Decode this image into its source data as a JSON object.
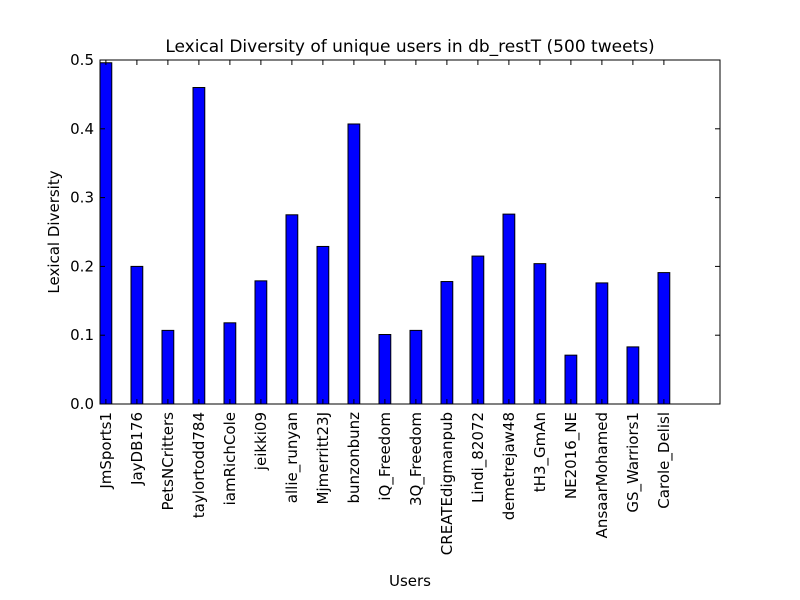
{
  "chart_data": {
    "type": "bar",
    "title": "Lexical Diversity of unique users in db_restT (500 tweets)",
    "xlabel": "Users",
    "ylabel": "Lexical Diversity",
    "ylim": [
      0,
      0.5
    ],
    "y_ticks": [
      "0.0",
      "0.1",
      "0.2",
      "0.3",
      "0.4",
      "0.5"
    ],
    "grid": false,
    "bar_color": "#0000ff",
    "categories": [
      "JmSports1",
      "JayDB176",
      "PetsNCritters",
      "taylortodd784",
      "iamRichCole",
      "jeikki09",
      "allie_runyan",
      "Mjmerritt23J",
      "bunzonbunz",
      "iQ_Freedom",
      "3Q_Freedom",
      "CREATEdigmanpub",
      "Lindi_82072",
      "demetrejaw48",
      "tH3_GmAn",
      "NE2016_NE",
      "AnsaarMohamed",
      "GS_Warriors1",
      "Carole_Delisl"
    ],
    "values": [
      0.496,
      0.2,
      0.107,
      0.46,
      0.118,
      0.179,
      0.275,
      0.229,
      0.407,
      0.101,
      0.107,
      0.178,
      0.215,
      0.276,
      0.204,
      0.071,
      0.176,
      0.083,
      0.191
    ]
  }
}
